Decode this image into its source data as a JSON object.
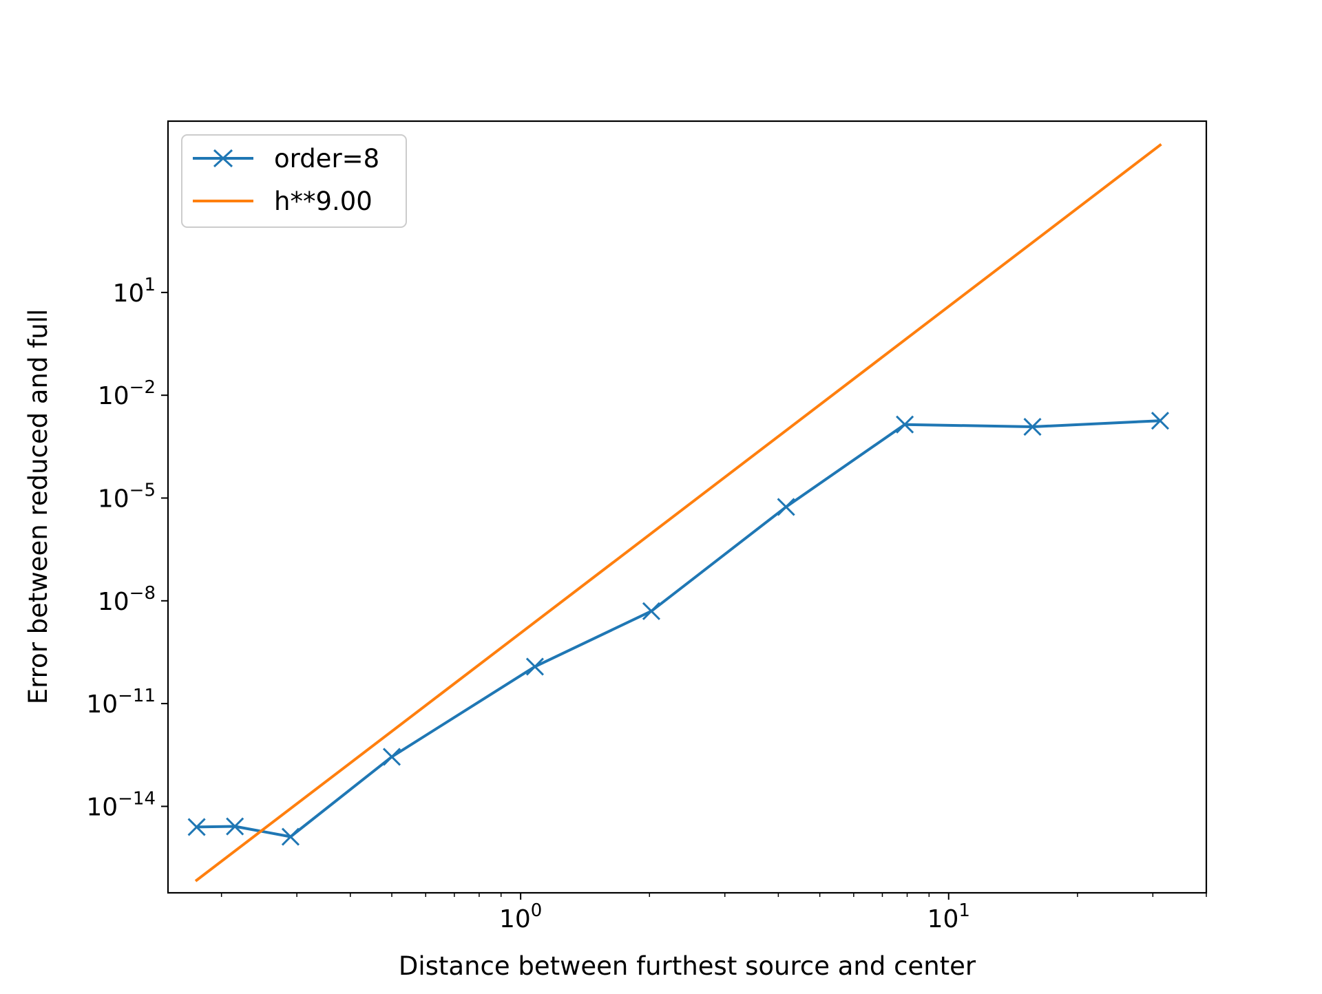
{
  "chart_data": {
    "type": "line",
    "title": "",
    "xlabel": "Distance between furthest source and center",
    "ylabel": "Error between reduced and full",
    "x_scale": "log",
    "y_scale": "log",
    "xlim": [
      0.15,
      40
    ],
    "ylim": [
      3e-17,
      1000000.0
    ],
    "grid": false,
    "legend_placement": "top-left",
    "x_ticks": [
      {
        "base": "10",
        "exp": "0",
        "value": 1
      },
      {
        "base": "10",
        "exp": "1",
        "value": 10
      }
    ],
    "y_ticks": [
      {
        "base": "10",
        "exp": "1",
        "value": 10
      },
      {
        "base": "10",
        "exp": "−2",
        "value": 0.01
      },
      {
        "base": "10",
        "exp": "−5",
        "value": 1e-05
      },
      {
        "base": "10",
        "exp": "−8",
        "value": 1e-08
      },
      {
        "base": "10",
        "exp": "−11",
        "value": 1e-11
      },
      {
        "base": "10",
        "exp": "−14",
        "value": 1e-14
      }
    ],
    "series": [
      {
        "name": "order=8",
        "color": "#1f77b4",
        "marker": "x",
        "x": [
          0.175,
          0.215,
          0.29,
          0.5,
          1.08,
          2.02,
          4.17,
          7.9,
          15.7,
          31.2
        ],
        "y": [
          2.5e-15,
          2.6e-15,
          1.3e-15,
          2.8e-13,
          1.2e-10,
          5e-09,
          5.5e-06,
          0.0014,
          0.0012,
          0.0018
        ]
      },
      {
        "name": "h**9.00",
        "color": "#ff7f0e",
        "marker": "none",
        "x": [
          0.175,
          31.2
        ],
        "y": [
          7e-17,
          200000.0
        ]
      }
    ]
  }
}
